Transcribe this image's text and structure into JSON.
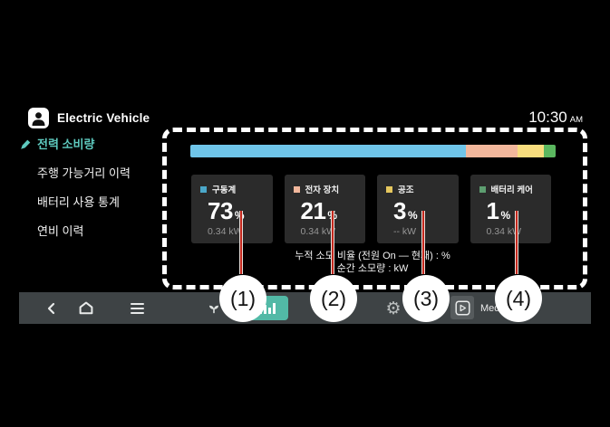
{
  "header": {
    "app_title": "Electric Vehicle",
    "time": "10:30",
    "meridiem": "AM"
  },
  "sidebar": {
    "items": [
      {
        "label": "전력 소비량",
        "active": true
      },
      {
        "label": "주행 가능거리 이력",
        "active": false
      },
      {
        "label": "배터리 사용 통계",
        "active": false
      },
      {
        "label": "연비 이력",
        "active": false
      }
    ]
  },
  "chart_data": {
    "type": "bar",
    "stacked": true,
    "categories": [
      "구동계",
      "전자 장치",
      "공조",
      "배터리 케어"
    ],
    "values": [
      73,
      21,
      3,
      1
    ],
    "unit": "%",
    "colors": [
      "#6fc5e9",
      "#f2b79c",
      "#f8dd7e",
      "#5bb75f"
    ],
    "bar_display_pct": [
      75.5,
      14.2,
      7.0,
      3.3
    ]
  },
  "cards": [
    {
      "label": "구동계",
      "value": "73",
      "unit": "%",
      "power": "0.34 kW",
      "color": "#4ba7c9"
    },
    {
      "label": "전자 장치",
      "value": "21",
      "unit": "%",
      "power": "0.34 kW",
      "color": "#f2b79c"
    },
    {
      "label": "공조",
      "value": "3",
      "unit": "%",
      "power": "-- kW",
      "color": "#e5c75e"
    },
    {
      "label": "배터리 케어",
      "value": "1",
      "unit": "%",
      "power": "0.34 kW",
      "color": "#5d9e70"
    }
  ],
  "footnote": {
    "line1": "누적 소모 비율  (전원 On — 현재)  :  %",
    "line2": "순간 소모량 :  kW"
  },
  "callouts": {
    "labels": [
      "(1)",
      "(2)",
      "(3)",
      "(4)"
    ]
  },
  "navbar": {
    "media_label": "Media"
  },
  "colors": {
    "accent_teal": "#52b9a6",
    "menu_active": "#5ecabf",
    "callout_red": "#c4281d",
    "card_bg": "#2b2b2b",
    "navbar_bg": "#3e4345"
  }
}
